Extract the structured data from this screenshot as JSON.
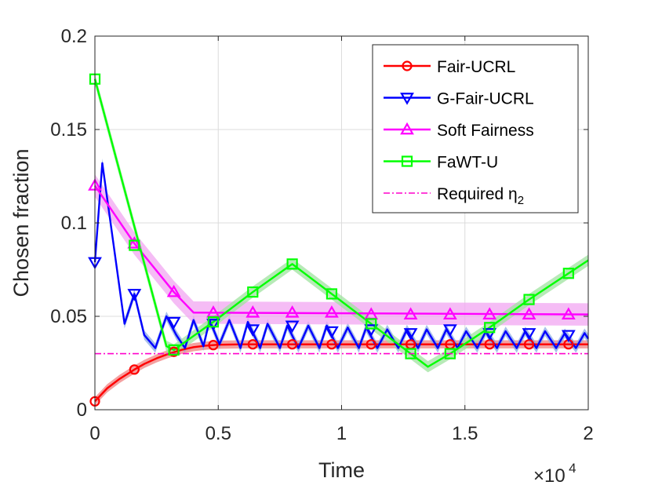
{
  "chart_data": {
    "type": "line",
    "xlabel": "Time",
    "ylabel": "Chosen fraction",
    "x_exponent": {
      "base": "×10",
      "power": "4"
    },
    "xlim": [
      0,
      20000
    ],
    "ylim": [
      0,
      0.2
    ],
    "xticks": [
      0,
      5000,
      10000,
      15000,
      20000
    ],
    "xtick_labels": [
      "0",
      "0.5",
      "1",
      "1.5",
      "2"
    ],
    "yticks": [
      0,
      0.05,
      0.1,
      0.15,
      0.2
    ],
    "ytick_labels": [
      "0",
      "0.05",
      "0.1",
      "0.15",
      "0.2"
    ],
    "grid": true,
    "legend_position": "top-right",
    "series": [
      {
        "name": "Fair-UCRL",
        "color": "#ff0000",
        "band_color": "#f08080",
        "marker": "circle",
        "band": 0.0022,
        "x": [
          0,
          500,
          1000,
          1600,
          2000,
          2500,
          3000,
          3500,
          4000,
          4500,
          5000,
          6000,
          8000,
          10000,
          12000,
          14000,
          16000,
          18000,
          20000
        ],
        "y": [
          0.0045,
          0.0115,
          0.0165,
          0.0215,
          0.0245,
          0.0275,
          0.03,
          0.032,
          0.0335,
          0.0343,
          0.0348,
          0.035,
          0.035,
          0.035,
          0.035,
          0.035,
          0.035,
          0.035,
          0.035
        ],
        "marker_x": [
          0,
          1600,
          3200,
          4800,
          6400,
          8000,
          9600,
          11200,
          12800,
          14400,
          16000,
          17600,
          19200
        ],
        "marker_y": [
          0.0045,
          0.0215,
          0.031,
          0.0346,
          0.035,
          0.035,
          0.035,
          0.035,
          0.035,
          0.035,
          0.035,
          0.035,
          0.035
        ]
      },
      {
        "name": "G-Fair-UCRL",
        "color": "#0000ff",
        "band_color": "#8aa8e6",
        "marker": "triangle-down",
        "band": 0.0025,
        "x": [
          0,
          300,
          1200,
          1600,
          2000,
          2450,
          2900,
          3300,
          3650,
          4000,
          4400,
          4650,
          5050,
          5450,
          5900,
          6200,
          6700,
          7000,
          7500,
          7800,
          8250,
          8650,
          9100,
          9400,
          9850,
          10250,
          10700,
          11000,
          11450,
          11850,
          12300,
          12650,
          13100,
          13450,
          13900,
          14250,
          14700,
          15050,
          15500,
          15850,
          16300,
          16650,
          17100,
          17450,
          17900,
          18250,
          18700,
          19050,
          19500,
          19850,
          20000
        ],
        "y": [
          0.079,
          0.132,
          0.046,
          0.062,
          0.04,
          0.033,
          0.05,
          0.04,
          0.033,
          0.048,
          0.034,
          0.048,
          0.035,
          0.048,
          0.033,
          0.047,
          0.033,
          0.046,
          0.033,
          0.045,
          0.033,
          0.045,
          0.033,
          0.045,
          0.033,
          0.044,
          0.033,
          0.044,
          0.033,
          0.043,
          0.033,
          0.043,
          0.033,
          0.043,
          0.033,
          0.043,
          0.033,
          0.042,
          0.033,
          0.042,
          0.033,
          0.042,
          0.033,
          0.042,
          0.033,
          0.042,
          0.033,
          0.041,
          0.033,
          0.041,
          0.038
        ],
        "marker_x": [
          0,
          1600,
          3200,
          4800,
          6400,
          8000,
          9600,
          11200,
          12800,
          14400,
          16000,
          17600,
          19200
        ],
        "marker_y": [
          0.079,
          0.062,
          0.047,
          0.046,
          0.043,
          0.045,
          0.042,
          0.043,
          0.041,
          0.043,
          0.041,
          0.041,
          0.04
        ]
      },
      {
        "name": "Soft Fairness",
        "color": "#ff00ff",
        "band_color": "#f2a6f2",
        "marker": "triangle-up",
        "band": 0.006,
        "x": [
          0,
          1600,
          3200,
          4000,
          20000
        ],
        "y": [
          0.12,
          0.089,
          0.063,
          0.052,
          0.051
        ],
        "marker_x": [
          0,
          1600,
          3200,
          4800,
          6400,
          8000,
          9600,
          11200,
          12800,
          14400,
          16000,
          17600,
          19200
        ],
        "marker_y": [
          0.12,
          0.089,
          0.063,
          0.052,
          0.052,
          0.052,
          0.052,
          0.051,
          0.051,
          0.051,
          0.051,
          0.051,
          0.051
        ]
      },
      {
        "name": "FaWT-U",
        "color": "#00ff00",
        "band_color": "#9fe39f",
        "marker": "square",
        "band": 0.003,
        "x": [
          0,
          2900,
          3200,
          4800,
          6400,
          8000,
          9600,
          11200,
          12800,
          13500,
          14400,
          16000,
          17600,
          19200,
          20000
        ],
        "y": [
          0.177,
          0.034,
          0.032,
          0.047,
          0.063,
          0.078,
          0.062,
          0.046,
          0.03,
          0.023,
          0.03,
          0.044,
          0.059,
          0.073,
          0.08
        ],
        "marker_x": [
          0,
          1600,
          3200,
          4800,
          6400,
          8000,
          9600,
          11200,
          12800,
          14400,
          16000,
          17600,
          19200
        ],
        "marker_y": [
          0.177,
          0.088,
          0.032,
          0.047,
          0.063,
          0.078,
          0.062,
          0.046,
          0.03,
          0.03,
          0.044,
          0.059,
          0.073
        ]
      },
      {
        "name": "Required η",
        "subscript": "2",
        "color": "#ff00cc",
        "marker": "none",
        "dash": "dashdot",
        "x": [
          0,
          20000
        ],
        "y": [
          0.03,
          0.03
        ]
      }
    ]
  }
}
